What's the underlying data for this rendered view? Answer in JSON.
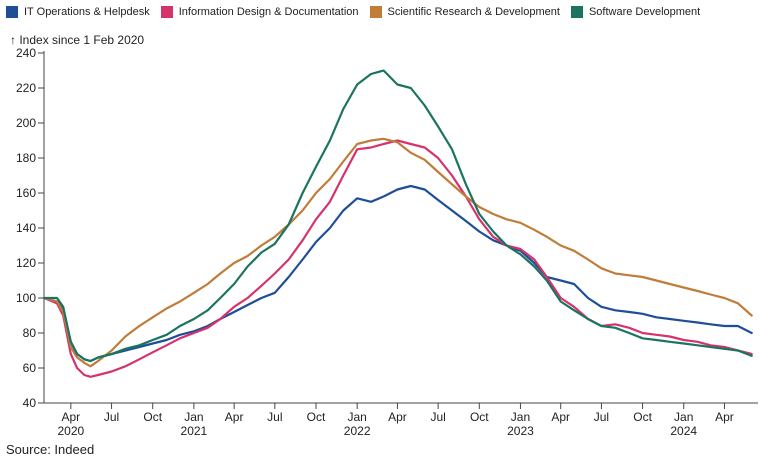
{
  "chart_data": {
    "type": "line",
    "ylabel": "Index since 1 Feb 2020",
    "source": "Source: Indeed",
    "ylim": [
      40,
      240
    ],
    "yticks": [
      40,
      60,
      80,
      100,
      120,
      140,
      160,
      180,
      200,
      220,
      240
    ],
    "xlim": [
      "2020-02-01",
      "2024-06-15"
    ],
    "xticks": [
      {
        "date": "2020-04-01",
        "label": "Apr",
        "year": "2020"
      },
      {
        "date": "2020-07-01",
        "label": "Jul"
      },
      {
        "date": "2020-10-01",
        "label": "Oct"
      },
      {
        "date": "2021-01-01",
        "label": "Jan",
        "year": "2021"
      },
      {
        "date": "2021-04-01",
        "label": "Apr"
      },
      {
        "date": "2021-07-01",
        "label": "Jul"
      },
      {
        "date": "2021-10-01",
        "label": "Oct"
      },
      {
        "date": "2022-01-01",
        "label": "Jan",
        "year": "2022"
      },
      {
        "date": "2022-04-01",
        "label": "Apr"
      },
      {
        "date": "2022-07-01",
        "label": "Jul"
      },
      {
        "date": "2022-10-01",
        "label": "Oct"
      },
      {
        "date": "2023-01-01",
        "label": "Jan",
        "year": "2023"
      },
      {
        "date": "2023-04-01",
        "label": "Apr"
      },
      {
        "date": "2023-07-01",
        "label": "Jul"
      },
      {
        "date": "2023-10-01",
        "label": "Oct"
      },
      {
        "date": "2024-01-01",
        "label": "Jan",
        "year": "2024"
      },
      {
        "date": "2024-04-01",
        "label": "Apr"
      }
    ],
    "grid": false,
    "legend_position": "top-left",
    "series": [
      {
        "name": "IT Operations & Helpdesk",
        "color": "#1f4e99",
        "points": [
          [
            "2020-02-01",
            100
          ],
          [
            "2020-03-01",
            98
          ],
          [
            "2020-03-15",
            93
          ],
          [
            "2020-04-01",
            75
          ],
          [
            "2020-04-15",
            68
          ],
          [
            "2020-05-01",
            65
          ],
          [
            "2020-05-15",
            64
          ],
          [
            "2020-06-01",
            66
          ],
          [
            "2020-07-01",
            68
          ],
          [
            "2020-08-01",
            70
          ],
          [
            "2020-09-01",
            72
          ],
          [
            "2020-10-01",
            74
          ],
          [
            "2020-11-01",
            76
          ],
          [
            "2020-12-01",
            79
          ],
          [
            "2021-01-01",
            81
          ],
          [
            "2021-02-01",
            84
          ],
          [
            "2021-03-01",
            88
          ],
          [
            "2021-04-01",
            92
          ],
          [
            "2021-05-01",
            96
          ],
          [
            "2021-06-01",
            100
          ],
          [
            "2021-07-01",
            103
          ],
          [
            "2021-08-01",
            112
          ],
          [
            "2021-09-01",
            122
          ],
          [
            "2021-10-01",
            132
          ],
          [
            "2021-11-01",
            140
          ],
          [
            "2021-12-01",
            150
          ],
          [
            "2022-01-01",
            157
          ],
          [
            "2022-02-01",
            155
          ],
          [
            "2022-03-01",
            158
          ],
          [
            "2022-04-01",
            162
          ],
          [
            "2022-05-01",
            164
          ],
          [
            "2022-06-01",
            162
          ],
          [
            "2022-07-01",
            156
          ],
          [
            "2022-08-01",
            150
          ],
          [
            "2022-09-01",
            144
          ],
          [
            "2022-10-01",
            138
          ],
          [
            "2022-11-01",
            133
          ],
          [
            "2022-12-01",
            130
          ],
          [
            "2023-01-01",
            127
          ],
          [
            "2023-02-01",
            120
          ],
          [
            "2023-03-01",
            112
          ],
          [
            "2023-04-01",
            110
          ],
          [
            "2023-05-01",
            108
          ],
          [
            "2023-06-01",
            100
          ],
          [
            "2023-07-01",
            95
          ],
          [
            "2023-08-01",
            93
          ],
          [
            "2023-09-01",
            92
          ],
          [
            "2023-10-01",
            91
          ],
          [
            "2023-11-01",
            89
          ],
          [
            "2023-12-01",
            88
          ],
          [
            "2024-01-01",
            87
          ],
          [
            "2024-02-01",
            86
          ],
          [
            "2024-03-01",
            85
          ],
          [
            "2024-04-01",
            84
          ],
          [
            "2024-05-01",
            84
          ],
          [
            "2024-06-01",
            80
          ]
        ]
      },
      {
        "name": "Information Design & Documentation",
        "color": "#d6336c",
        "points": [
          [
            "2020-02-01",
            100
          ],
          [
            "2020-03-01",
            97
          ],
          [
            "2020-03-15",
            90
          ],
          [
            "2020-04-01",
            68
          ],
          [
            "2020-04-15",
            60
          ],
          [
            "2020-05-01",
            56
          ],
          [
            "2020-05-15",
            55
          ],
          [
            "2020-06-01",
            56
          ],
          [
            "2020-07-01",
            58
          ],
          [
            "2020-08-01",
            61
          ],
          [
            "2020-09-01",
            65
          ],
          [
            "2020-10-01",
            69
          ],
          [
            "2020-11-01",
            73
          ],
          [
            "2020-12-01",
            77
          ],
          [
            "2021-01-01",
            80
          ],
          [
            "2021-02-01",
            83
          ],
          [
            "2021-03-01",
            88
          ],
          [
            "2021-04-01",
            95
          ],
          [
            "2021-05-01",
            100
          ],
          [
            "2021-06-01",
            107
          ],
          [
            "2021-07-01",
            114
          ],
          [
            "2021-08-01",
            122
          ],
          [
            "2021-09-01",
            133
          ],
          [
            "2021-10-01",
            145
          ],
          [
            "2021-11-01",
            155
          ],
          [
            "2021-12-01",
            170
          ],
          [
            "2022-01-01",
            185
          ],
          [
            "2022-02-01",
            186
          ],
          [
            "2022-03-01",
            188
          ],
          [
            "2022-04-01",
            190
          ],
          [
            "2022-05-01",
            188
          ],
          [
            "2022-06-01",
            186
          ],
          [
            "2022-07-01",
            180
          ],
          [
            "2022-08-01",
            170
          ],
          [
            "2022-09-01",
            158
          ],
          [
            "2022-10-01",
            145
          ],
          [
            "2022-11-01",
            135
          ],
          [
            "2022-12-01",
            130
          ],
          [
            "2023-01-01",
            128
          ],
          [
            "2023-02-01",
            122
          ],
          [
            "2023-03-01",
            112
          ],
          [
            "2023-04-01",
            100
          ],
          [
            "2023-05-01",
            95
          ],
          [
            "2023-06-01",
            88
          ],
          [
            "2023-07-01",
            84
          ],
          [
            "2023-08-01",
            85
          ],
          [
            "2023-09-01",
            83
          ],
          [
            "2023-10-01",
            80
          ],
          [
            "2023-11-01",
            79
          ],
          [
            "2023-12-01",
            78
          ],
          [
            "2024-01-01",
            76
          ],
          [
            "2024-02-01",
            75
          ],
          [
            "2024-03-01",
            73
          ],
          [
            "2024-04-01",
            72
          ],
          [
            "2024-05-01",
            70
          ],
          [
            "2024-06-01",
            68
          ]
        ]
      },
      {
        "name": "Scientific Research & Development",
        "color": "#c07c38",
        "points": [
          [
            "2020-02-01",
            100
          ],
          [
            "2020-03-01",
            98
          ],
          [
            "2020-03-15",
            92
          ],
          [
            "2020-04-01",
            72
          ],
          [
            "2020-04-15",
            66
          ],
          [
            "2020-05-01",
            63
          ],
          [
            "2020-05-15",
            61
          ],
          [
            "2020-06-01",
            64
          ],
          [
            "2020-07-01",
            70
          ],
          [
            "2020-08-01",
            78
          ],
          [
            "2020-09-01",
            84
          ],
          [
            "2020-10-01",
            89
          ],
          [
            "2020-11-01",
            94
          ],
          [
            "2020-12-01",
            98
          ],
          [
            "2021-01-01",
            103
          ],
          [
            "2021-02-01",
            108
          ],
          [
            "2021-03-01",
            114
          ],
          [
            "2021-04-01",
            120
          ],
          [
            "2021-05-01",
            124
          ],
          [
            "2021-06-01",
            130
          ],
          [
            "2021-07-01",
            135
          ],
          [
            "2021-08-01",
            142
          ],
          [
            "2021-09-01",
            150
          ],
          [
            "2021-10-01",
            160
          ],
          [
            "2021-11-01",
            168
          ],
          [
            "2021-12-01",
            178
          ],
          [
            "2022-01-01",
            188
          ],
          [
            "2022-02-01",
            190
          ],
          [
            "2022-03-01",
            191
          ],
          [
            "2022-04-01",
            189
          ],
          [
            "2022-05-01",
            183
          ],
          [
            "2022-06-01",
            179
          ],
          [
            "2022-07-01",
            172
          ],
          [
            "2022-08-01",
            165
          ],
          [
            "2022-09-01",
            158
          ],
          [
            "2022-10-01",
            152
          ],
          [
            "2022-11-01",
            148
          ],
          [
            "2022-12-01",
            145
          ],
          [
            "2023-01-01",
            143
          ],
          [
            "2023-02-01",
            139
          ],
          [
            "2023-03-01",
            135
          ],
          [
            "2023-04-01",
            130
          ],
          [
            "2023-05-01",
            127
          ],
          [
            "2023-06-01",
            122
          ],
          [
            "2023-07-01",
            117
          ],
          [
            "2023-08-01",
            114
          ],
          [
            "2023-09-01",
            113
          ],
          [
            "2023-10-01",
            112
          ],
          [
            "2023-11-01",
            110
          ],
          [
            "2023-12-01",
            108
          ],
          [
            "2024-01-01",
            106
          ],
          [
            "2024-02-01",
            104
          ],
          [
            "2024-03-01",
            102
          ],
          [
            "2024-04-01",
            100
          ],
          [
            "2024-05-01",
            97
          ],
          [
            "2024-06-01",
            90
          ]
        ]
      },
      {
        "name": "Software Development",
        "color": "#1b7460",
        "points": [
          [
            "2020-02-01",
            100
          ],
          [
            "2020-03-01",
            100
          ],
          [
            "2020-03-15",
            95
          ],
          [
            "2020-04-01",
            75
          ],
          [
            "2020-04-15",
            68
          ],
          [
            "2020-05-01",
            65
          ],
          [
            "2020-05-15",
            64
          ],
          [
            "2020-06-01",
            66
          ],
          [
            "2020-07-01",
            68
          ],
          [
            "2020-08-01",
            71
          ],
          [
            "2020-09-01",
            73
          ],
          [
            "2020-10-01",
            76
          ],
          [
            "2020-11-01",
            79
          ],
          [
            "2020-12-01",
            84
          ],
          [
            "2021-01-01",
            88
          ],
          [
            "2021-02-01",
            93
          ],
          [
            "2021-03-01",
            100
          ],
          [
            "2021-04-01",
            108
          ],
          [
            "2021-05-01",
            118
          ],
          [
            "2021-06-01",
            126
          ],
          [
            "2021-07-01",
            131
          ],
          [
            "2021-08-01",
            142
          ],
          [
            "2021-09-01",
            160
          ],
          [
            "2021-10-01",
            175
          ],
          [
            "2021-11-01",
            190
          ],
          [
            "2021-12-01",
            208
          ],
          [
            "2022-01-01",
            222
          ],
          [
            "2022-02-01",
            228
          ],
          [
            "2022-03-01",
            230
          ],
          [
            "2022-04-01",
            222
          ],
          [
            "2022-05-01",
            220
          ],
          [
            "2022-06-01",
            210
          ],
          [
            "2022-07-01",
            198
          ],
          [
            "2022-08-01",
            185
          ],
          [
            "2022-09-01",
            165
          ],
          [
            "2022-10-01",
            148
          ],
          [
            "2022-11-01",
            138
          ],
          [
            "2022-12-01",
            130
          ],
          [
            "2023-01-01",
            125
          ],
          [
            "2023-02-01",
            118
          ],
          [
            "2023-03-01",
            110
          ],
          [
            "2023-04-01",
            98
          ],
          [
            "2023-05-01",
            93
          ],
          [
            "2023-06-01",
            88
          ],
          [
            "2023-07-01",
            84
          ],
          [
            "2023-08-01",
            83
          ],
          [
            "2023-09-01",
            80
          ],
          [
            "2023-10-01",
            77
          ],
          [
            "2023-11-01",
            76
          ],
          [
            "2023-12-01",
            75
          ],
          [
            "2024-01-01",
            74
          ],
          [
            "2024-02-01",
            73
          ],
          [
            "2024-03-01",
            72
          ],
          [
            "2024-04-01",
            71
          ],
          [
            "2024-05-01",
            70
          ],
          [
            "2024-06-01",
            67
          ]
        ]
      }
    ]
  }
}
